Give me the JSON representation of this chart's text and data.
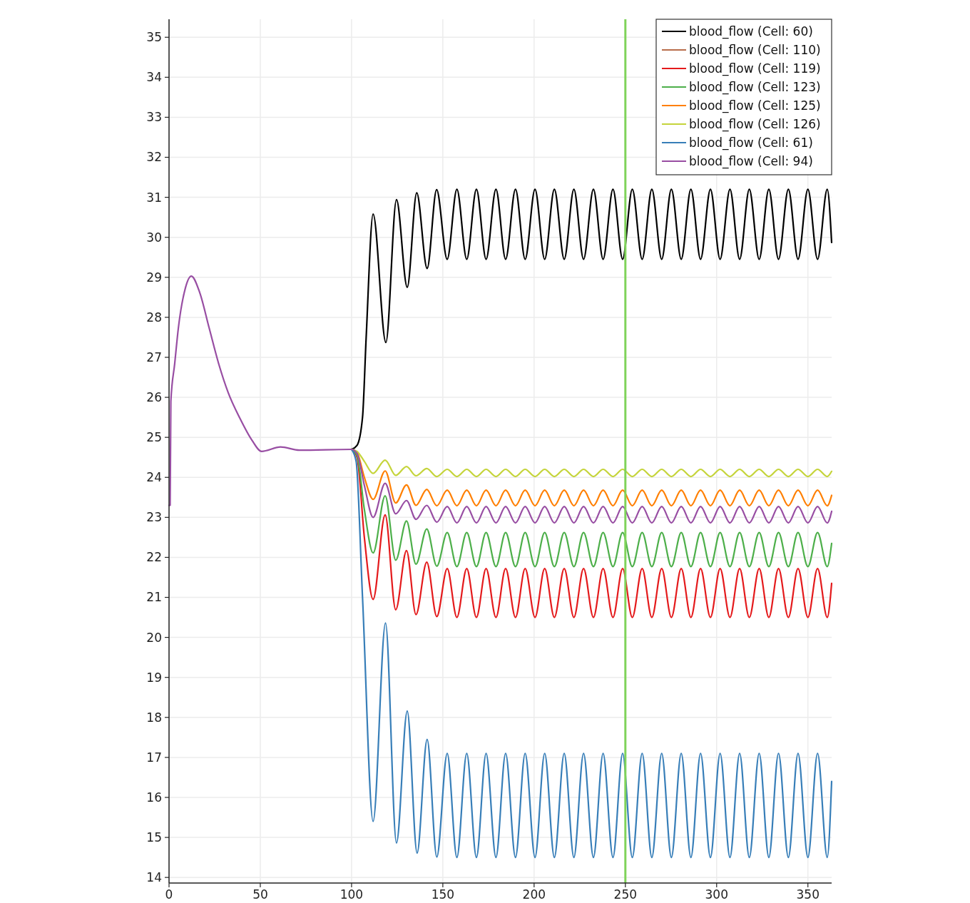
{
  "chart_data": {
    "type": "line",
    "xlim": [
      0,
      363
    ],
    "ylim": [
      13.86,
      35.45
    ],
    "xticks": [
      0,
      50,
      100,
      150,
      200,
      250,
      300,
      350
    ],
    "yticks": [
      14,
      15,
      16,
      17,
      18,
      19,
      20,
      21,
      22,
      23,
      24,
      25,
      26,
      27,
      28,
      29,
      30,
      31,
      32,
      33,
      34,
      35
    ],
    "grid": true,
    "legend": "top right",
    "ref_lines": [
      {
        "axis": "x",
        "value": 250,
        "color": "#7fd35a"
      }
    ],
    "series": [
      {
        "name": "blood_flow (Cell: 60)",
        "color": "#000000",
        "x": [
          100,
          103,
          106,
          108,
          111.8,
          118.8,
          124.6,
          130.5,
          135.7,
          141.4,
          146.6,
          152.4,
          157.7,
          163.1,
          168.4,
          173.7,
          179.1,
          184.4,
          189.8,
          195.1,
          200.5,
          205.8,
          211.1,
          216.5,
          221.8,
          227.1,
          232.5,
          237.8,
          243.2,
          248.5,
          253.8,
          259.2,
          264.5,
          269.9,
          275.2,
          280.6,
          285.9,
          291.2,
          296.6,
          301.9,
          307.3,
          312.6,
          317.9,
          323.3,
          328.6,
          333.9,
          339.3,
          344.6,
          350.0,
          355.3,
          360.6,
          363
        ],
        "values": [
          24.7,
          24.8,
          25.5,
          27.5,
          30.58,
          27.37,
          30.94,
          28.75,
          31.11,
          29.22,
          31.19,
          29.45,
          31.2,
          29.45,
          31.2,
          29.45,
          31.2,
          29.45,
          31.2,
          29.45,
          31.2,
          29.45,
          31.2,
          29.45,
          31.2,
          29.45,
          31.2,
          29.45,
          31.2,
          29.45,
          31.2,
          29.45,
          31.2,
          29.45,
          31.2,
          29.45,
          31.2,
          29.45,
          31.2,
          29.45,
          31.2,
          29.45,
          31.2,
          29.45,
          31.2,
          29.45,
          31.2,
          29.45,
          31.2,
          29.45,
          31.2,
          29.87
        ]
      },
      {
        "name": "blood_flow (Cell: 110)",
        "color": "#b86d4a"
      },
      {
        "name": "blood_flow (Cell: 119)",
        "color": "#e41a1c",
        "x": [
          100,
          103,
          107,
          111.8,
          118.4,
          124.2,
          130.1,
          135.3,
          141.2,
          146.7,
          152.4,
          157.7,
          163.1,
          168.4,
          173.7,
          179.1,
          184.4,
          189.8,
          195.1,
          200.5,
          205.8,
          211.1,
          216.5,
          221.8,
          227.1,
          232.5,
          237.8,
          243.2,
          248.5,
          253.8,
          259.2,
          264.5,
          269.9,
          275.2,
          280.6,
          285.9,
          291.2,
          296.6,
          301.9,
          307.3,
          312.6,
          317.9,
          323.3,
          328.6,
          333.9,
          339.3,
          344.6,
          350.0,
          355.3,
          360.6,
          363
        ],
        "values": [
          24.7,
          24.5,
          22.5,
          20.95,
          23.06,
          20.69,
          22.17,
          20.57,
          21.88,
          20.52,
          21.72,
          20.5,
          21.72,
          20.5,
          21.72,
          20.5,
          21.72,
          20.5,
          21.72,
          20.5,
          21.72,
          20.5,
          21.72,
          20.5,
          21.72,
          20.5,
          21.72,
          20.5,
          21.72,
          20.5,
          21.72,
          20.5,
          21.72,
          20.5,
          21.72,
          20.5,
          21.72,
          20.5,
          21.72,
          20.5,
          21.72,
          20.5,
          21.72,
          20.5,
          21.72,
          20.5,
          21.72,
          20.5,
          21.72,
          20.5,
          21.35
        ]
      },
      {
        "name": "blood_flow (Cell: 123)",
        "color": "#4daf4a",
        "x": [
          100,
          103,
          107,
          111.8,
          118.4,
          124.2,
          130.1,
          135.3,
          141.2,
          146.7,
          152.4,
          157.7,
          163.1,
          168.4,
          173.7,
          179.1,
          184.4,
          189.8,
          195.1,
          200.5,
          205.8,
          211.1,
          216.5,
          221.8,
          227.1,
          232.5,
          237.8,
          243.2,
          248.5,
          253.8,
          259.2,
          264.5,
          269.9,
          275.2,
          280.6,
          285.9,
          291.2,
          296.6,
          301.9,
          307.3,
          312.6,
          317.9,
          323.3,
          328.6,
          333.9,
          339.3,
          344.6,
          350.0,
          355.3,
          360.6,
          363
        ],
        "values": [
          24.7,
          24.55,
          23.2,
          22.11,
          23.54,
          21.93,
          22.91,
          21.83,
          22.71,
          21.78,
          22.62,
          21.77,
          22.62,
          21.77,
          22.62,
          21.77,
          22.62,
          21.77,
          22.62,
          21.77,
          22.62,
          21.77,
          22.62,
          21.77,
          22.62,
          21.77,
          22.62,
          21.77,
          22.62,
          21.77,
          22.62,
          21.77,
          22.62,
          21.77,
          22.62,
          21.77,
          22.62,
          21.77,
          22.62,
          21.77,
          22.62,
          21.77,
          22.62,
          21.77,
          22.62,
          21.77,
          22.62,
          21.77,
          22.62,
          21.77,
          22.35
        ]
      },
      {
        "name": "blood_flow (Cell: 125)",
        "color": "#ff7f00",
        "x": [
          100,
          103,
          107,
          111.8,
          118.4,
          124.2,
          130.1,
          135.3,
          141.2,
          146.7,
          152.4,
          157.7,
          163.1,
          168.4,
          173.7,
          179.1,
          184.4,
          189.8,
          195.1,
          200.5,
          205.8,
          211.1,
          216.5,
          221.8,
          227.1,
          232.5,
          237.8,
          243.2,
          248.5,
          253.8,
          259.2,
          264.5,
          269.9,
          275.2,
          280.6,
          285.9,
          291.2,
          296.6,
          301.9,
          307.3,
          312.6,
          317.9,
          323.3,
          328.6,
          333.9,
          339.3,
          344.6,
          350.0,
          355.3,
          360.6,
          363
        ],
        "values": [
          24.7,
          24.62,
          24.0,
          23.45,
          24.16,
          23.36,
          23.81,
          23.3,
          23.7,
          23.29,
          23.68,
          23.29,
          23.68,
          23.29,
          23.68,
          23.29,
          23.68,
          23.29,
          23.68,
          23.29,
          23.68,
          23.29,
          23.68,
          23.29,
          23.68,
          23.29,
          23.68,
          23.29,
          23.68,
          23.29,
          23.68,
          23.29,
          23.68,
          23.29,
          23.68,
          23.29,
          23.68,
          23.29,
          23.68,
          23.29,
          23.68,
          23.29,
          23.68,
          23.29,
          23.68,
          23.29,
          23.68,
          23.29,
          23.68,
          23.29,
          23.55
        ]
      },
      {
        "name": "blood_flow (Cell: 126)",
        "color": "#c5d43b",
        "x": [
          100,
          103,
          107,
          111.8,
          118.4,
          124.2,
          130.1,
          135.3,
          141.2,
          146.7,
          152.4,
          157.7,
          163.1,
          168.4,
          173.7,
          179.1,
          184.4,
          189.8,
          195.1,
          200.5,
          205.8,
          211.1,
          216.5,
          221.8,
          227.1,
          232.5,
          237.8,
          243.2,
          248.5,
          253.8,
          259.2,
          264.5,
          269.9,
          275.2,
          280.6,
          285.9,
          291.2,
          296.6,
          301.9,
          307.3,
          312.6,
          317.9,
          323.3,
          328.6,
          333.9,
          339.3,
          344.6,
          350.0,
          355.3,
          360.6,
          363
        ],
        "values": [
          24.7,
          24.65,
          24.4,
          24.1,
          24.43,
          24.05,
          24.27,
          24.04,
          24.22,
          24.02,
          24.2,
          24.02,
          24.2,
          24.02,
          24.2,
          24.02,
          24.2,
          24.02,
          24.2,
          24.02,
          24.2,
          24.02,
          24.2,
          24.02,
          24.2,
          24.02,
          24.2,
          24.02,
          24.2,
          24.02,
          24.2,
          24.02,
          24.2,
          24.02,
          24.2,
          24.02,
          24.2,
          24.02,
          24.2,
          24.02,
          24.2,
          24.02,
          24.2,
          24.02,
          24.2,
          24.02,
          24.2,
          24.02,
          24.2,
          24.02,
          24.15
        ]
      },
      {
        "name": "blood_flow (Cell: 61)",
        "color": "#377eb8",
        "x": [
          100,
          102.5,
          106,
          111.8,
          118.6,
          124.6,
          130.5,
          135.9,
          141.4,
          146.7,
          152.4,
          157.7,
          163.1,
          168.4,
          173.7,
          179.1,
          184.4,
          189.8,
          195.1,
          200.5,
          205.8,
          211.1,
          216.5,
          221.8,
          227.1,
          232.5,
          237.8,
          243.2,
          248.5,
          253.8,
          259.2,
          264.5,
          269.9,
          275.2,
          280.6,
          285.9,
          291.2,
          296.6,
          301.9,
          307.3,
          312.6,
          317.9,
          323.3,
          328.6,
          333.9,
          339.3,
          344.6,
          350.0,
          355.3,
          360.6,
          363
        ],
        "values": [
          24.7,
          24.4,
          21,
          15.4,
          20.36,
          14.86,
          18.16,
          14.61,
          17.45,
          14.51,
          17.1,
          14.5,
          17.1,
          14.5,
          17.1,
          14.5,
          17.1,
          14.5,
          17.1,
          14.5,
          17.1,
          14.5,
          17.1,
          14.5,
          17.1,
          14.5,
          17.1,
          14.5,
          17.1,
          14.5,
          17.1,
          14.5,
          17.1,
          14.5,
          17.1,
          14.5,
          17.1,
          14.5,
          17.1,
          14.5,
          17.1,
          14.5,
          17.1,
          14.5,
          17.1,
          14.5,
          17.1,
          14.5,
          17.1,
          14.5,
          16.4
        ]
      },
      {
        "name": "blood_flow (Cell: 94)",
        "color": "#984ea3",
        "x": [
          0,
          0.6,
          1.0,
          3.1,
          5.1,
          9.0,
          12.2,
          16.8,
          22.0,
          27.2,
          32.4,
          38.9,
          45.4,
          50.7,
          61.1,
          71.5,
          100,
          103,
          107,
          111.8,
          118.4,
          124.2,
          130.1,
          135.3,
          141.2,
          146.7,
          152.4,
          157.7,
          163.1,
          168.4,
          173.7,
          179.1,
          184.4,
          189.8,
          195.1,
          200.5,
          205.8,
          211.1,
          216.5,
          221.8,
          227.1,
          232.5,
          237.8,
          243.2,
          248.5,
          253.8,
          259.2,
          264.5,
          269.9,
          275.2,
          280.6,
          285.9,
          291.2,
          296.6,
          301.9,
          307.3,
          312.6,
          317.9,
          323.3,
          328.6,
          333.9,
          339.3,
          344.6,
          350.0,
          355.3,
          360.6,
          363
        ],
        "values": [
          23.3,
          23.3,
          25.9,
          26.84,
          27.73,
          28.74,
          29.03,
          28.62,
          27.73,
          26.84,
          26.12,
          25.47,
          24.93,
          24.65,
          24.76,
          24.68,
          24.7,
          24.6,
          23.8,
          23.0,
          23.85,
          23.09,
          23.42,
          22.95,
          23.3,
          22.88,
          23.27,
          22.86,
          23.27,
          22.86,
          23.27,
          22.86,
          23.27,
          22.86,
          23.27,
          22.86,
          23.27,
          22.86,
          23.27,
          22.86,
          23.27,
          22.86,
          23.27,
          22.86,
          23.27,
          22.86,
          23.27,
          22.86,
          23.27,
          22.86,
          23.27,
          22.86,
          23.27,
          22.86,
          23.27,
          22.86,
          23.27,
          22.86,
          23.27,
          22.86,
          23.27,
          22.86,
          23.27,
          22.86,
          23.27,
          22.86,
          23.15
        ]
      }
    ]
  }
}
